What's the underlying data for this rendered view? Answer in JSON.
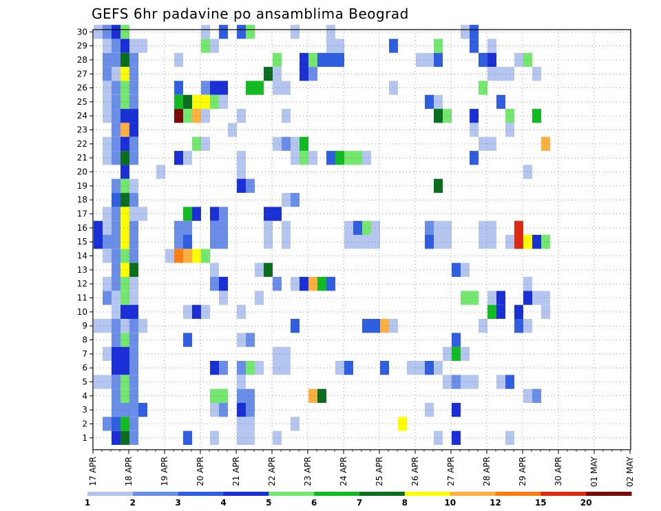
{
  "chart_data": {
    "type": "heatmap",
    "title": "GEFS 6hr padavine po ansamblima Beograd",
    "x_ticks": [
      "17 APR",
      "18 APR",
      "19 APR",
      "20 APR",
      "21 APR",
      "22 APR",
      "23 APR",
      "24 APR",
      "25 APR",
      "26 APR",
      "27 APR",
      "28 APR",
      "29 APR",
      "30 APR",
      "01 MAY",
      "02 MAY"
    ],
    "y_ticks": [
      "1",
      "2",
      "3",
      "4",
      "5",
      "6",
      "7",
      "8",
      "9",
      "10",
      "11",
      "12",
      "13",
      "14",
      "15",
      "16",
      "17",
      "18",
      "19",
      "20",
      "21",
      "22",
      "23",
      "24",
      "25",
      "26",
      "27",
      "28",
      "29",
      "30"
    ],
    "time_steps_per_day": 4,
    "colorbar": {
      "levels": [
        "1",
        "2",
        "3",
        "4",
        "5",
        "6",
        "7",
        "8",
        "10",
        "12",
        "15",
        "20"
      ],
      "colors": [
        "#b4c6f0",
        "#6a8ee8",
        "#2f5fe0",
        "#1a2fd6",
        "#74e86e",
        "#11bb22",
        "#0a6e1e",
        "#ffff00",
        "#ffb040",
        "#ff7d12",
        "#dd2a10",
        "#7a0a0a"
      ]
    },
    "cells": [
      [
        30,
        0,
        1
      ],
      [
        30,
        1,
        2
      ],
      [
        30,
        2,
        4
      ],
      [
        30,
        3,
        5
      ],
      [
        30,
        12,
        1
      ],
      [
        30,
        14,
        3
      ],
      [
        30,
        16,
        3
      ],
      [
        30,
        17,
        5
      ],
      [
        30,
        22,
        1
      ],
      [
        30,
        26,
        1
      ],
      [
        30,
        41,
        1
      ],
      [
        30,
        42,
        3
      ],
      [
        29,
        1,
        1
      ],
      [
        29,
        2,
        2
      ],
      [
        29,
        3,
        4
      ],
      [
        29,
        4,
        1
      ],
      [
        29,
        5,
        1
      ],
      [
        29,
        12,
        5
      ],
      [
        29,
        13,
        1
      ],
      [
        29,
        26,
        1
      ],
      [
        29,
        27,
        1
      ],
      [
        29,
        33,
        3
      ],
      [
        29,
        38,
        5
      ],
      [
        29,
        42,
        3
      ],
      [
        29,
        44,
        1
      ],
      [
        28,
        1,
        2
      ],
      [
        28,
        2,
        2
      ],
      [
        28,
        3,
        7
      ],
      [
        28,
        4,
        2
      ],
      [
        28,
        9,
        1
      ],
      [
        28,
        20,
        5
      ],
      [
        28,
        23,
        4
      ],
      [
        28,
        24,
        5
      ],
      [
        28,
        25,
        3
      ],
      [
        28,
        26,
        3
      ],
      [
        28,
        27,
        3
      ],
      [
        28,
        36,
        1
      ],
      [
        28,
        37,
        1
      ],
      [
        28,
        38,
        3
      ],
      [
        28,
        43,
        3
      ],
      [
        28,
        44,
        4
      ],
      [
        28,
        47,
        1
      ],
      [
        28,
        48,
        5
      ],
      [
        27,
        1,
        2
      ],
      [
        27,
        2,
        1
      ],
      [
        27,
        3,
        8
      ],
      [
        27,
        4,
        2
      ],
      [
        27,
        19,
        7
      ],
      [
        27,
        20,
        1
      ],
      [
        27,
        23,
        4
      ],
      [
        27,
        24,
        2
      ],
      [
        27,
        44,
        1
      ],
      [
        27,
        45,
        1
      ],
      [
        27,
        46,
        1
      ],
      [
        27,
        49,
        1
      ],
      [
        26,
        1,
        1
      ],
      [
        26,
        2,
        2
      ],
      [
        26,
        3,
        5
      ],
      [
        26,
        4,
        2
      ],
      [
        26,
        9,
        3
      ],
      [
        26,
        12,
        2
      ],
      [
        26,
        13,
        4
      ],
      [
        26,
        14,
        4
      ],
      [
        26,
        17,
        6
      ],
      [
        26,
        18,
        6
      ],
      [
        26,
        20,
        1
      ],
      [
        26,
        21,
        1
      ],
      [
        26,
        33,
        1
      ],
      [
        26,
        43,
        5
      ],
      [
        25,
        1,
        1
      ],
      [
        25,
        2,
        2
      ],
      [
        25,
        3,
        5
      ],
      [
        25,
        4,
        2
      ],
      [
        25,
        9,
        6
      ],
      [
        25,
        10,
        7
      ],
      [
        25,
        11,
        8
      ],
      [
        25,
        12,
        8
      ],
      [
        25,
        13,
        5
      ],
      [
        25,
        14,
        1
      ],
      [
        25,
        37,
        3
      ],
      [
        25,
        38,
        1
      ],
      [
        25,
        45,
        3
      ],
      [
        24,
        1,
        1
      ],
      [
        24,
        2,
        2
      ],
      [
        24,
        3,
        4
      ],
      [
        24,
        4,
        4
      ],
      [
        24,
        9,
        20
      ],
      [
        24,
        10,
        5
      ],
      [
        24,
        11,
        10
      ],
      [
        24,
        12,
        1
      ],
      [
        24,
        16,
        1
      ],
      [
        24,
        21,
        1
      ],
      [
        24,
        38,
        7
      ],
      [
        24,
        39,
        5
      ],
      [
        24,
        42,
        4
      ],
      [
        24,
        46,
        5
      ],
      [
        24,
        49,
        6
      ],
      [
        23,
        2,
        2
      ],
      [
        23,
        3,
        10
      ],
      [
        23,
        4,
        4
      ],
      [
        23,
        15,
        1
      ],
      [
        23,
        42,
        1
      ],
      [
        23,
        46,
        1
      ],
      [
        22,
        1,
        1
      ],
      [
        22,
        2,
        2
      ],
      [
        22,
        3,
        4
      ],
      [
        22,
        4,
        2
      ],
      [
        22,
        11,
        5
      ],
      [
        22,
        12,
        1
      ],
      [
        22,
        20,
        1
      ],
      [
        22,
        21,
        2
      ],
      [
        22,
        22,
        1
      ],
      [
        22,
        23,
        6
      ],
      [
        22,
        43,
        1
      ],
      [
        22,
        44,
        1
      ],
      [
        22,
        50,
        10
      ],
      [
        21,
        1,
        1
      ],
      [
        21,
        2,
        2
      ],
      [
        21,
        3,
        7
      ],
      [
        21,
        4,
        2
      ],
      [
        21,
        9,
        4
      ],
      [
        21,
        10,
        1
      ],
      [
        21,
        16,
        1
      ],
      [
        21,
        22,
        1
      ],
      [
        21,
        23,
        5
      ],
      [
        21,
        24,
        1
      ],
      [
        21,
        26,
        3
      ],
      [
        21,
        27,
        6
      ],
      [
        21,
        28,
        5
      ],
      [
        21,
        29,
        5
      ],
      [
        21,
        30,
        1
      ],
      [
        21,
        42,
        3
      ],
      [
        20,
        3,
        4
      ],
      [
        20,
        7,
        1
      ],
      [
        20,
        16,
        1
      ],
      [
        20,
        48,
        1
      ],
      [
        19,
        2,
        2
      ],
      [
        19,
        3,
        5
      ],
      [
        19,
        4,
        1
      ],
      [
        19,
        16,
        4
      ],
      [
        19,
        17,
        2
      ],
      [
        19,
        38,
        7
      ],
      [
        18,
        2,
        3
      ],
      [
        18,
        3,
        7
      ],
      [
        18,
        4,
        2
      ],
      [
        18,
        21,
        1
      ],
      [
        18,
        22,
        2
      ],
      [
        17,
        1,
        1
      ],
      [
        17,
        2,
        2
      ],
      [
        17,
        3,
        8
      ],
      [
        17,
        4,
        1
      ],
      [
        17,
        5,
        1
      ],
      [
        17,
        10,
        6
      ],
      [
        17,
        11,
        4
      ],
      [
        17,
        13,
        4
      ],
      [
        17,
        14,
        2
      ],
      [
        17,
        19,
        4
      ],
      [
        17,
        20,
        4
      ],
      [
        16,
        0,
        4
      ],
      [
        16,
        1,
        1
      ],
      [
        16,
        2,
        2
      ],
      [
        16,
        3,
        8
      ],
      [
        16,
        4,
        2
      ],
      [
        16,
        9,
        2
      ],
      [
        16,
        10,
        2
      ],
      [
        16,
        13,
        2
      ],
      [
        16,
        14,
        2
      ],
      [
        16,
        19,
        1
      ],
      [
        16,
        21,
        1
      ],
      [
        16,
        28,
        1
      ],
      [
        16,
        29,
        3
      ],
      [
        16,
        30,
        5
      ],
      [
        16,
        31,
        1
      ],
      [
        16,
        37,
        2
      ],
      [
        16,
        38,
        1
      ],
      [
        16,
        39,
        1
      ],
      [
        16,
        43,
        1
      ],
      [
        16,
        44,
        1
      ],
      [
        16,
        47,
        15
      ],
      [
        15,
        0,
        4
      ],
      [
        15,
        1,
        2
      ],
      [
        15,
        2,
        2
      ],
      [
        15,
        3,
        8
      ],
      [
        15,
        4,
        2
      ],
      [
        15,
        9,
        2
      ],
      [
        15,
        10,
        3
      ],
      [
        15,
        13,
        2
      ],
      [
        15,
        14,
        2
      ],
      [
        15,
        19,
        1
      ],
      [
        15,
        21,
        1
      ],
      [
        15,
        28,
        1
      ],
      [
        15,
        29,
        1
      ],
      [
        15,
        30,
        1
      ],
      [
        15,
        31,
        1
      ],
      [
        15,
        37,
        3
      ],
      [
        15,
        38,
        1
      ],
      [
        15,
        39,
        1
      ],
      [
        15,
        43,
        1
      ],
      [
        15,
        44,
        1
      ],
      [
        15,
        46,
        1
      ],
      [
        15,
        47,
        15
      ],
      [
        15,
        48,
        8
      ],
      [
        15,
        49,
        4
      ],
      [
        15,
        50,
        5
      ],
      [
        14,
        1,
        1
      ],
      [
        14,
        2,
        2
      ],
      [
        14,
        3,
        5
      ],
      [
        14,
        4,
        2
      ],
      [
        14,
        8,
        1
      ],
      [
        14,
        9,
        12
      ],
      [
        14,
        10,
        10
      ],
      [
        14,
        11,
        8
      ],
      [
        14,
        12,
        5
      ],
      [
        13,
        2,
        2
      ],
      [
        13,
        3,
        8
      ],
      [
        13,
        4,
        7
      ],
      [
        13,
        13,
        1
      ],
      [
        13,
        18,
        1
      ],
      [
        13,
        19,
        7
      ],
      [
        13,
        40,
        3
      ],
      [
        13,
        41,
        1
      ],
      [
        12,
        1,
        1
      ],
      [
        12,
        2,
        2
      ],
      [
        12,
        3,
        5
      ],
      [
        12,
        4,
        1
      ],
      [
        12,
        13,
        2
      ],
      [
        12,
        14,
        4
      ],
      [
        12,
        20,
        2
      ],
      [
        12,
        22,
        1
      ],
      [
        12,
        23,
        4
      ],
      [
        12,
        24,
        10
      ],
      [
        12,
        25,
        6
      ],
      [
        12,
        26,
        3
      ],
      [
        12,
        48,
        1
      ],
      [
        11,
        1,
        2
      ],
      [
        11,
        2,
        1
      ],
      [
        11,
        3,
        5
      ],
      [
        11,
        4,
        1
      ],
      [
        11,
        14,
        1
      ],
      [
        11,
        18,
        1
      ],
      [
        11,
        41,
        5
      ],
      [
        11,
        42,
        5
      ],
      [
        11,
        44,
        1
      ],
      [
        11,
        45,
        4
      ],
      [
        11,
        48,
        4
      ],
      [
        11,
        49,
        1
      ],
      [
        11,
        50,
        1
      ],
      [
        10,
        2,
        1
      ],
      [
        10,
        3,
        4
      ],
      [
        10,
        4,
        4
      ],
      [
        10,
        10,
        1
      ],
      [
        10,
        11,
        4
      ],
      [
        10,
        12,
        1
      ],
      [
        10,
        16,
        1
      ],
      [
        10,
        44,
        6
      ],
      [
        10,
        45,
        4
      ],
      [
        10,
        47,
        4
      ],
      [
        10,
        50,
        1
      ],
      [
        9,
        0,
        1
      ],
      [
        9,
        1,
        1
      ],
      [
        9,
        2,
        2
      ],
      [
        9,
        3,
        1
      ],
      [
        9,
        4,
        2
      ],
      [
        9,
        5,
        1
      ],
      [
        9,
        22,
        3
      ],
      [
        9,
        30,
        3
      ],
      [
        9,
        31,
        3
      ],
      [
        9,
        32,
        10
      ],
      [
        9,
        33,
        1
      ],
      [
        9,
        43,
        1
      ],
      [
        9,
        47,
        3
      ],
      [
        9,
        48,
        1
      ],
      [
        8,
        2,
        2
      ],
      [
        8,
        3,
        5
      ],
      [
        8,
        4,
        2
      ],
      [
        8,
        10,
        3
      ],
      [
        8,
        16,
        1
      ],
      [
        8,
        17,
        2
      ],
      [
        8,
        40,
        3
      ],
      [
        7,
        1,
        1
      ],
      [
        7,
        2,
        4
      ],
      [
        7,
        3,
        4
      ],
      [
        7,
        4,
        2
      ],
      [
        7,
        20,
        1
      ],
      [
        7,
        21,
        1
      ],
      [
        7,
        39,
        1
      ],
      [
        7,
        40,
        6
      ],
      [
        7,
        41,
        1
      ],
      [
        6,
        2,
        4
      ],
      [
        6,
        3,
        4
      ],
      [
        6,
        4,
        2
      ],
      [
        6,
        13,
        4
      ],
      [
        6,
        14,
        2
      ],
      [
        6,
        16,
        2
      ],
      [
        6,
        17,
        5
      ],
      [
        6,
        18,
        1
      ],
      [
        6,
        20,
        1
      ],
      [
        6,
        21,
        1
      ],
      [
        6,
        27,
        1
      ],
      [
        6,
        28,
        3
      ],
      [
        6,
        32,
        3
      ],
      [
        6,
        35,
        1
      ],
      [
        6,
        36,
        1
      ],
      [
        6,
        37,
        3
      ],
      [
        6,
        38,
        1
      ],
      [
        5,
        0,
        1
      ],
      [
        5,
        1,
        1
      ],
      [
        5,
        2,
        2
      ],
      [
        5,
        3,
        5
      ],
      [
        5,
        4,
        2
      ],
      [
        5,
        16,
        1
      ],
      [
        5,
        39,
        1
      ],
      [
        5,
        40,
        2
      ],
      [
        5,
        41,
        1
      ],
      [
        5,
        42,
        1
      ],
      [
        5,
        45,
        1
      ],
      [
        5,
        46,
        3
      ],
      [
        4,
        2,
        2
      ],
      [
        4,
        3,
        5
      ],
      [
        4,
        4,
        2
      ],
      [
        4,
        13,
        5
      ],
      [
        4,
        14,
        5
      ],
      [
        4,
        16,
        2
      ],
      [
        4,
        17,
        2
      ],
      [
        4,
        24,
        10
      ],
      [
        4,
        25,
        7
      ],
      [
        4,
        48,
        1
      ],
      [
        4,
        49,
        2
      ],
      [
        3,
        2,
        2
      ],
      [
        3,
        3,
        2
      ],
      [
        3,
        4,
        2
      ],
      [
        3,
        5,
        3
      ],
      [
        3,
        13,
        1
      ],
      [
        3,
        14,
        2
      ],
      [
        3,
        16,
        4
      ],
      [
        3,
        17,
        2
      ],
      [
        3,
        37,
        1
      ],
      [
        3,
        40,
        4
      ],
      [
        2,
        1,
        2
      ],
      [
        2,
        2,
        3
      ],
      [
        2,
        3,
        6
      ],
      [
        2,
        4,
        2
      ],
      [
        2,
        16,
        1
      ],
      [
        2,
        17,
        1
      ],
      [
        2,
        22,
        1
      ],
      [
        2,
        34,
        8
      ],
      [
        1,
        2,
        4
      ],
      [
        1,
        3,
        7
      ],
      [
        1,
        4,
        2
      ],
      [
        1,
        10,
        3
      ],
      [
        1,
        13,
        1
      ],
      [
        1,
        16,
        1
      ],
      [
        1,
        17,
        1
      ],
      [
        1,
        20,
        1
      ],
      [
        1,
        38,
        1
      ],
      [
        1,
        40,
        4
      ],
      [
        1,
        46,
        1
      ]
    ]
  }
}
